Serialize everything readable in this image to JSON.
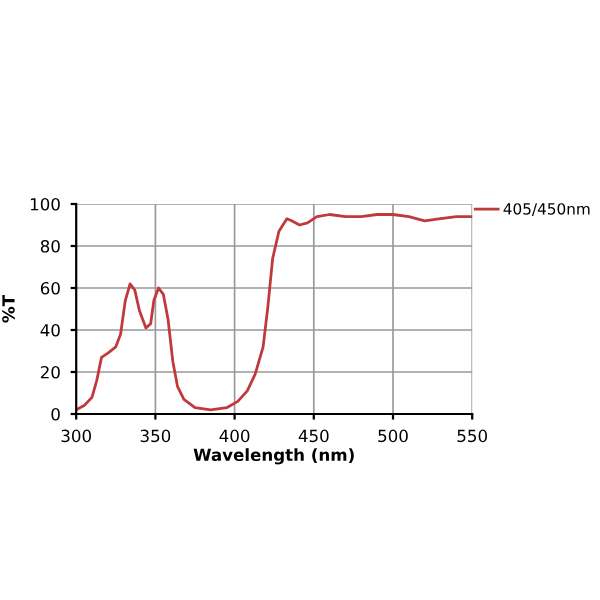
{
  "chart_data": {
    "type": "line",
    "xlabel": "Wavelength (nm)",
    "ylabel": "%T",
    "xlim": [
      300,
      550
    ],
    "xticks": [
      300,
      350,
      400,
      450,
      500,
      550
    ],
    "ylim": [
      0,
      100
    ],
    "yticks": [
      0,
      20,
      40,
      60,
      80,
      100
    ],
    "grid": true,
    "legend": "top right",
    "marker": "none",
    "line_style": "solid",
    "series": [
      {
        "name": "405/450nm",
        "color": "#c0393b",
        "x": [
          300,
          305,
          310,
          313,
          316,
          320,
          325,
          328,
          331,
          334,
          337,
          340,
          344,
          347,
          349,
          352,
          355,
          358,
          361,
          364,
          368,
          375,
          385,
          395,
          402,
          408,
          413,
          418,
          421,
          424,
          428,
          433,
          436,
          441,
          446,
          452,
          460,
          470,
          480,
          490,
          500,
          510,
          520,
          530,
          540,
          550
        ],
        "values": [
          2,
          4,
          8,
          16,
          27,
          29,
          32,
          38,
          54,
          62,
          59,
          49,
          41,
          43,
          54,
          60,
          57,
          45,
          25,
          13,
          7,
          3,
          2,
          3,
          6,
          11,
          19,
          32,
          51,
          74,
          87,
          93,
          92,
          90,
          91,
          94,
          95,
          94,
          94,
          95,
          95,
          94,
          92,
          93,
          94,
          94
        ]
      }
    ]
  }
}
